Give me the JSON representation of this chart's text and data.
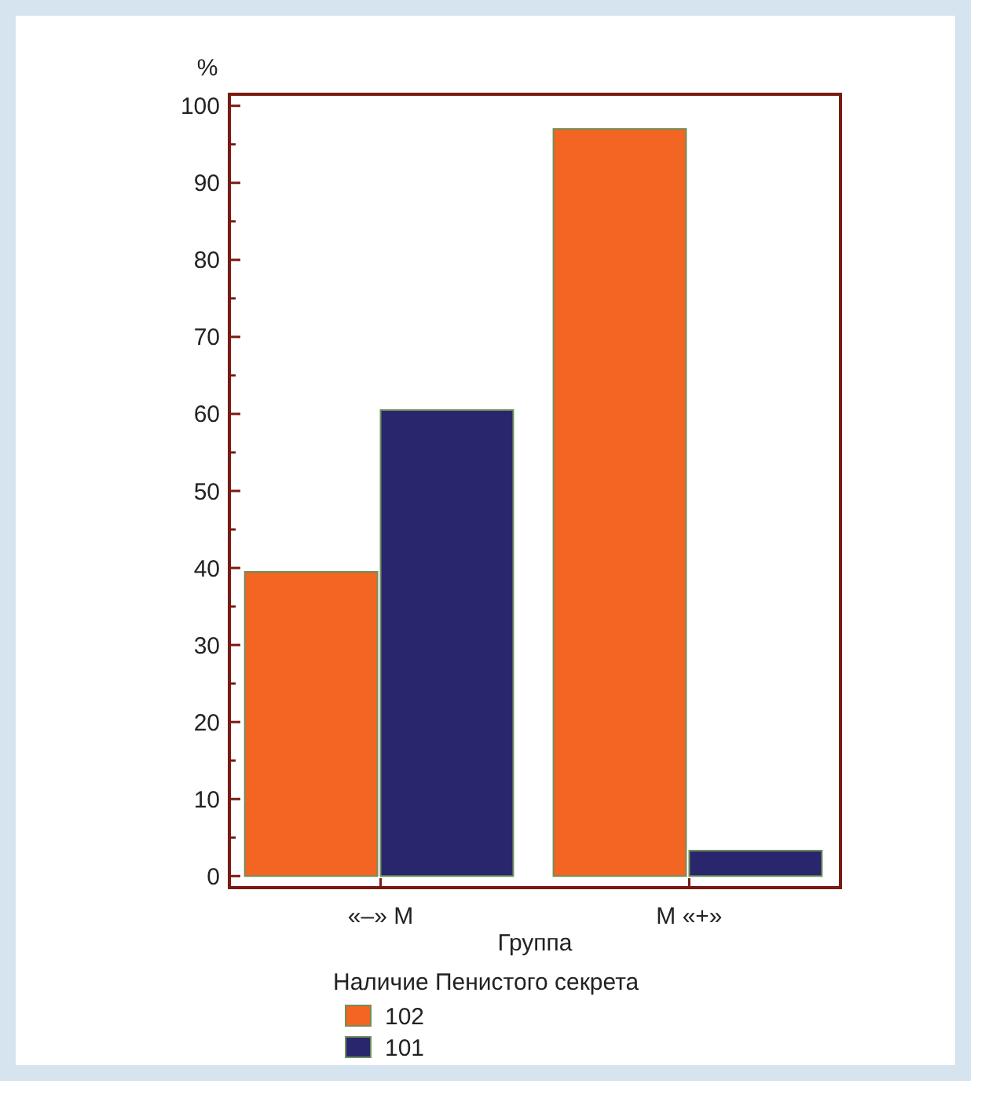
{
  "chart_data": {
    "type": "bar",
    "ylabel": "%",
    "xlabel": "Группа",
    "legend_title": "Наличие Пенистого секрета",
    "categories": [
      "«–» M",
      "M «+»"
    ],
    "series": [
      {
        "name": "102",
        "color": "#f26522",
        "values": [
          39.5,
          97
        ]
      },
      {
        "name": "101",
        "color": "#29266e",
        "values": [
          60.5,
          3.3
        ]
      }
    ],
    "ylim": [
      -1.5,
      101.5
    ],
    "yticks": [
      0,
      {
        "value": 5,
        "label": null
      },
      10,
      {
        "value": 15,
        "label": null
      },
      20,
      {
        "value": 25,
        "label": null
      },
      30,
      {
        "value": 35,
        "label": null
      },
      40,
      {
        "value": 45,
        "label": null
      },
      50,
      {
        "value": 55,
        "label": null
      },
      60,
      {
        "value": 65,
        "label": null
      },
      70,
      {
        "value": 75,
        "label": null
      },
      80,
      {
        "value": 85,
        "label": null
      },
      90,
      {
        "value": 95,
        "label": null
      },
      100
    ],
    "grid": false,
    "legend": "bottom"
  }
}
